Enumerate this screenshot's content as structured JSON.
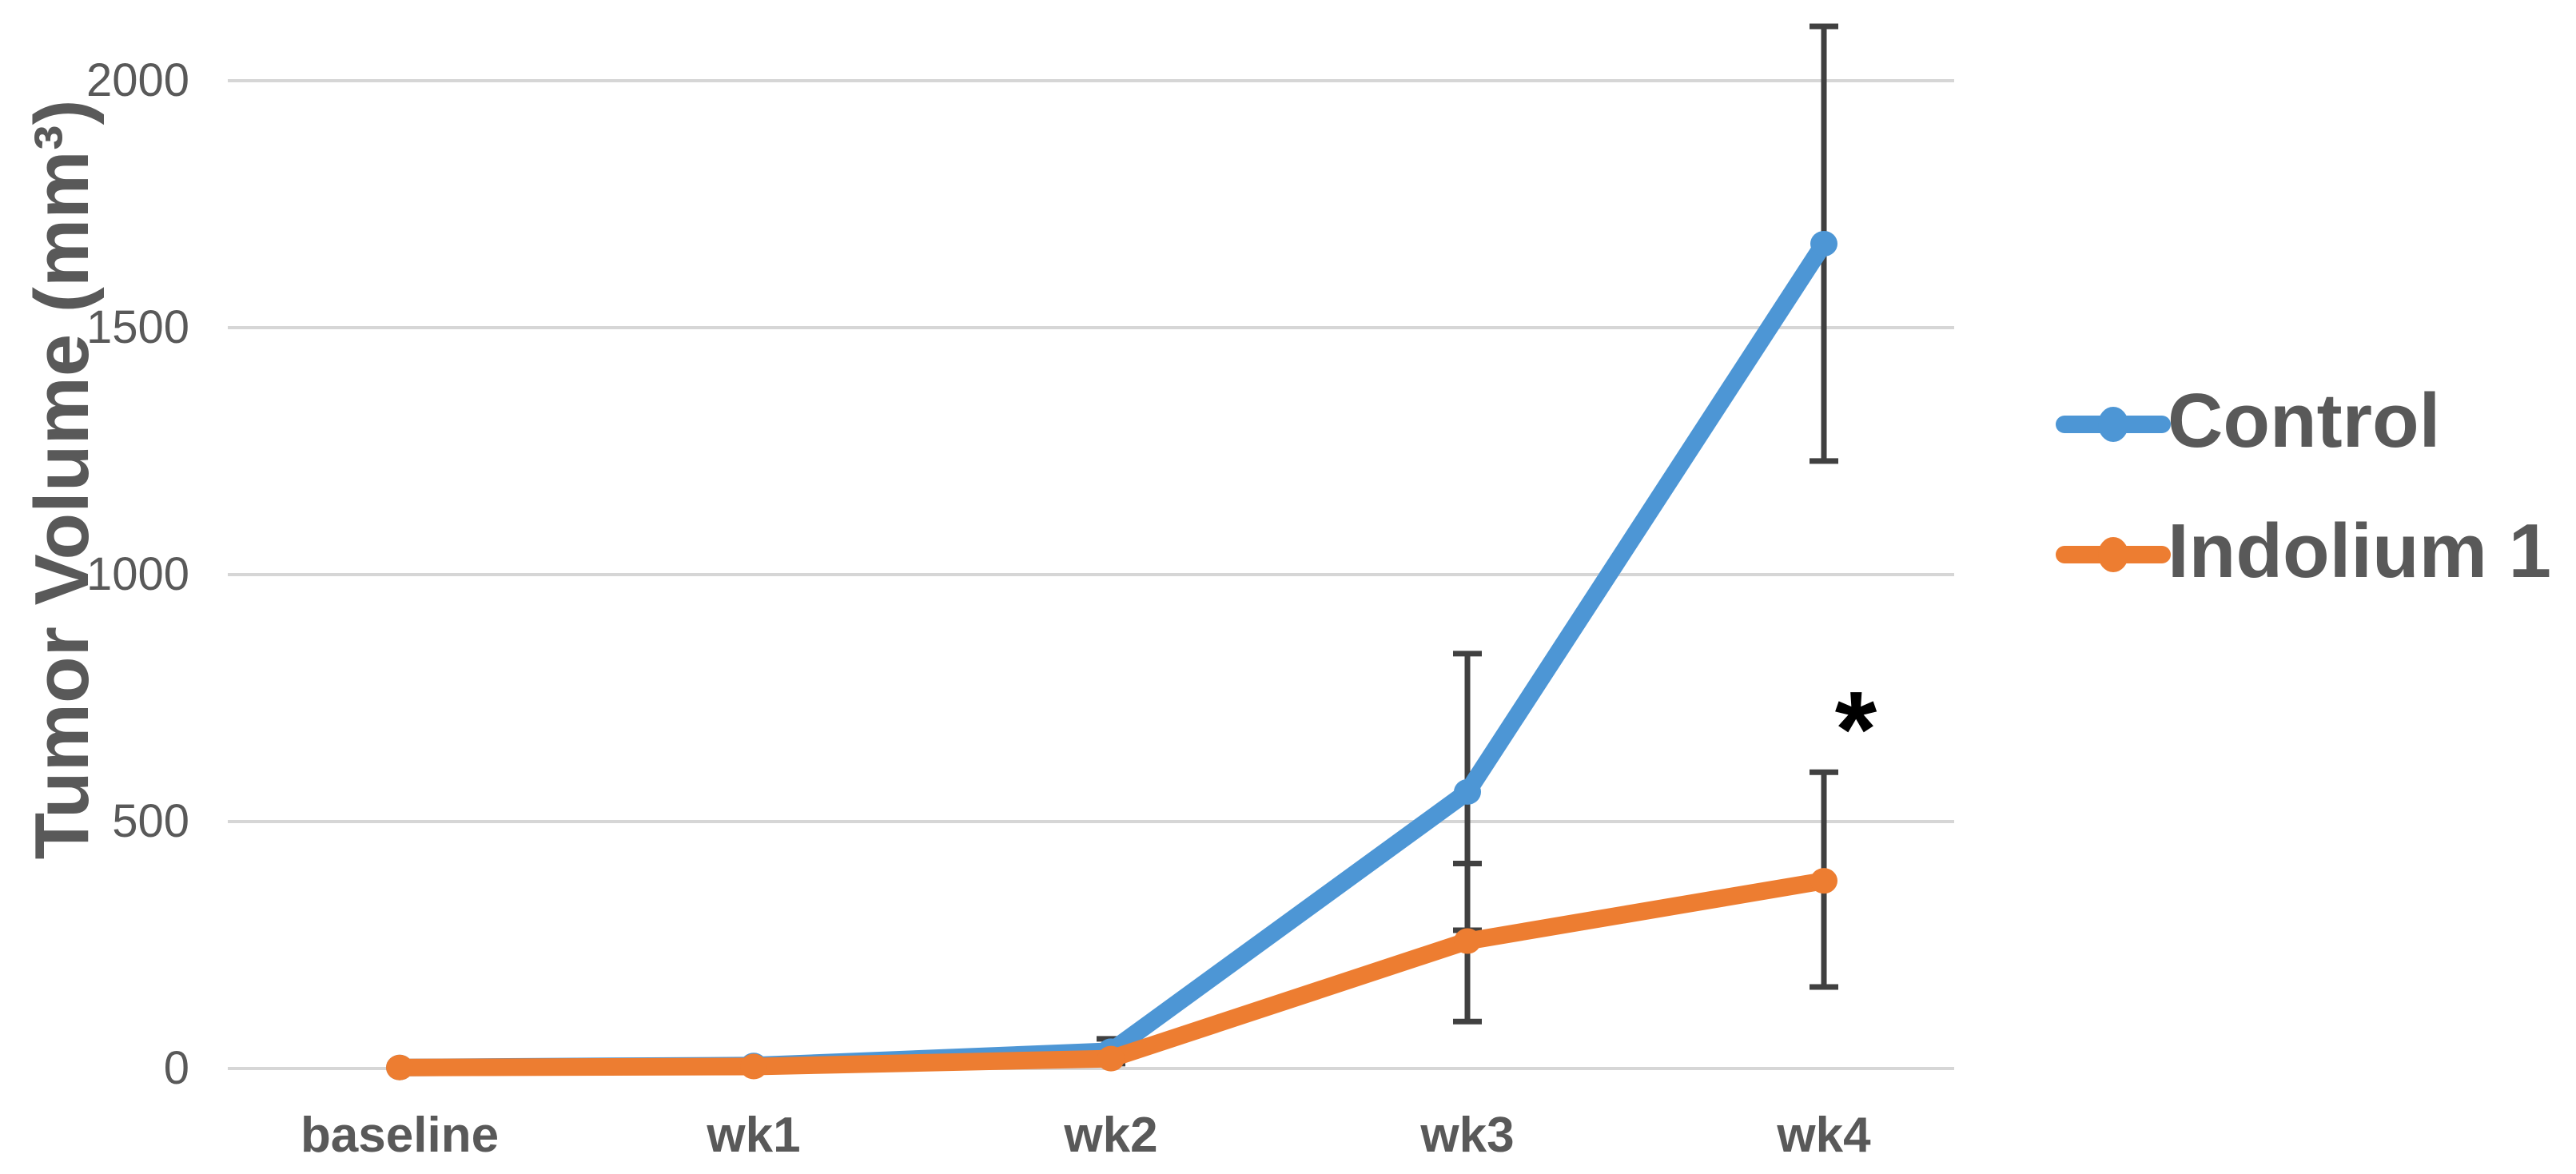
{
  "chart_data": {
    "type": "line",
    "title": "",
    "xlabel": "",
    "ylabel": "Tumor Volume (mm³)",
    "categories": [
      "baseline",
      "wk1",
      "wk2",
      "wk3",
      "wk4"
    ],
    "y_ticks": [
      0,
      500,
      1000,
      1500,
      2000
    ],
    "y_tick_labels": [
      "0",
      "500",
      "1000",
      "1500",
      "2000"
    ],
    "ylim": [
      0,
      2150
    ],
    "grid": "horizontal-only",
    "legend_position": "right-center",
    "series": [
      {
        "name": "Control",
        "color": "#4D96D5",
        "marker": "circle",
        "values": [
          2,
          6,
          35,
          560,
          1670
        ],
        "error_range": [
          null,
          null,
          [
            10,
            60
          ],
          [
            280,
            840
          ],
          [
            1230,
            2110
          ]
        ]
      },
      {
        "name": "Indolium 1",
        "color": "#ED7D31",
        "marker": "circle",
        "values": [
          2,
          4,
          20,
          258,
          380
        ],
        "error_range": [
          null,
          null,
          null,
          [
            95,
            415
          ],
          [
            165,
            600
          ]
        ]
      }
    ],
    "annotation": {
      "text": "*",
      "near_category": "wk4",
      "y_value": 735
    }
  },
  "style": {
    "background": "#FFFFFF",
    "text_color": "#595959",
    "gridline_color": "#D6D6D6",
    "errorbar_color": "#404040"
  }
}
